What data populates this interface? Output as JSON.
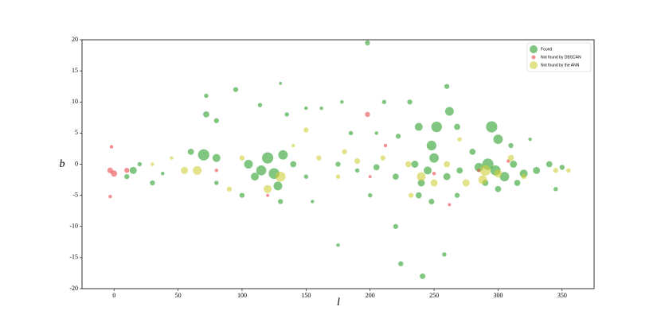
{
  "chart_data": {
    "type": "scatter",
    "xlabel": "l",
    "ylabel": "b",
    "xlim": [
      -25,
      375
    ],
    "ylim": [
      -20,
      20
    ],
    "xticks": [
      0,
      50,
      100,
      150,
      200,
      250,
      300,
      350
    ],
    "yticks": [
      -20,
      -15,
      -10,
      -5,
      0,
      5,
      10,
      15,
      20
    ],
    "legend": "upper right",
    "series": [
      {
        "name": "Found",
        "color": "#2ca02c",
        "x": [
          198,
          241,
          224,
          258,
          220,
          175,
          95,
          72,
          114,
          130,
          162,
          178,
          211,
          231,
          260,
          262,
          238,
          252,
          295,
          300,
          268,
          72,
          80,
          135,
          150,
          185,
          205,
          222,
          248,
          280,
          310,
          325,
          60,
          70,
          80,
          105,
          115,
          120,
          125,
          132,
          128,
          110,
          140,
          150,
          175,
          190,
          205,
          220,
          235,
          245,
          250,
          260,
          270,
          285,
          292,
          298,
          305,
          312,
          320,
          330,
          340,
          350,
          238,
          248,
          268,
          300,
          15,
          10,
          20,
          30,
          38,
          80,
          100,
          130,
          155,
          200,
          240,
          290,
          315,
          345
        ],
        "values": [
          19.5,
          -18,
          -16,
          -14.5,
          -10,
          -13,
          12,
          11,
          9.5,
          13,
          9,
          10,
          10,
          10,
          12.5,
          8.5,
          6,
          6,
          6,
          4,
          6,
          8,
          7,
          8,
          9,
          5,
          5,
          4.5,
          3,
          2,
          3,
          4,
          2,
          1.5,
          1,
          0,
          -1,
          1,
          -1.5,
          1.5,
          -3.5,
          -2,
          0,
          -2,
          0,
          -1,
          -0.5,
          -2,
          0,
          -1,
          1,
          -2,
          -1,
          -0.5,
          0,
          -1,
          -2,
          0,
          -1.5,
          -1,
          0,
          -0.5,
          -5,
          -6,
          -5,
          -4,
          -1,
          -2,
          0,
          -3,
          -1.5,
          -3,
          -5,
          -6,
          -6,
          -5,
          -3,
          -3,
          -3,
          -4
        ],
        "sizes": [
          40,
          50,
          40,
          30,
          40,
          20,
          40,
          30,
          30,
          15,
          20,
          20,
          30,
          40,
          40,
          120,
          100,
          180,
          200,
          140,
          60,
          60,
          40,
          30,
          20,
          30,
          20,
          40,
          150,
          60,
          40,
          20,
          60,
          200,
          100,
          120,
          160,
          200,
          180,
          140,
          120,
          100,
          60,
          30,
          40,
          30,
          60,
          60,
          80,
          100,
          140,
          80,
          60,
          120,
          200,
          160,
          140,
          80,
          100,
          80,
          60,
          40,
          60,
          50,
          40,
          60,
          80,
          40,
          30,
          40,
          20,
          30,
          40,
          40,
          20,
          30,
          80,
          60,
          60,
          30
        ]
      },
      {
        "name": "Not found by DBSCAN",
        "color": "#e8454a",
        "x": [
          -3,
          0,
          -2,
          -3,
          10,
          198,
          212,
          250,
          262,
          120,
          80,
          285,
          308,
          200
        ],
        "values": [
          -1,
          -1.5,
          2.8,
          -5.2,
          -1,
          8,
          3,
          -1.5,
          -6.5,
          -5,
          -1,
          -1,
          0.5,
          -2
        ],
        "sizes": [
          50,
          60,
          20,
          20,
          40,
          40,
          20,
          20,
          15,
          15,
          20,
          20,
          20,
          15
        ]
      },
      {
        "name": "Not found by the ANN",
        "color": "#cfcf3a",
        "x": [
          65,
          55,
          130,
          120,
          150,
          160,
          180,
          190,
          210,
          230,
          240,
          250,
          260,
          275,
          290,
          288,
          300,
          310,
          320,
          345,
          355,
          30,
          45,
          90,
          100,
          270,
          232,
          175,
          140
        ],
        "values": [
          -1,
          -1,
          -2,
          -4,
          5.5,
          1,
          2,
          0.5,
          1,
          0,
          -2,
          -3,
          0,
          -3,
          -1,
          -2.5,
          -1.5,
          1,
          -2,
          -1,
          -1,
          0,
          1,
          -4,
          1,
          4,
          -5,
          -2,
          3
        ],
        "sizes": [
          120,
          80,
          160,
          100,
          40,
          40,
          40,
          50,
          40,
          60,
          120,
          80,
          60,
          80,
          180,
          120,
          100,
          60,
          40,
          40,
          30,
          20,
          20,
          40,
          40,
          30,
          40,
          30,
          20
        ]
      }
    ]
  }
}
